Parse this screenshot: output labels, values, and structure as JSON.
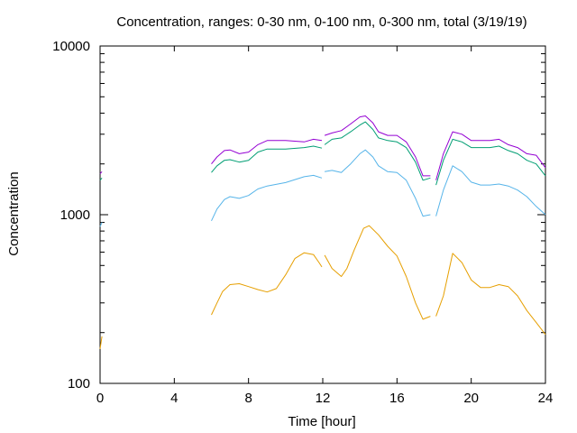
{
  "chart_data": {
    "type": "line",
    "title": "Concentration, ranges: 0-30 nm, 0-100 nm, 0-300 nm, total (3/19/19)",
    "xlabel": "Time [hour]",
    "ylabel": "Concentration",
    "xlim": [
      0,
      24
    ],
    "ylim": [
      100,
      10000
    ],
    "yscale": "log",
    "grid": false,
    "legend": "none",
    "x_ticks": [
      0,
      4,
      8,
      12,
      16,
      20,
      24
    ],
    "x_tick_labels": [
      "0",
      "4",
      "8",
      "12",
      "16",
      "20",
      "24"
    ],
    "y_ticks": [
      100,
      1000,
      10000
    ],
    "y_tick_labels": [
      "100",
      "1000",
      "10000"
    ],
    "series": [
      {
        "color": "#e69f00",
        "segments": [
          [
            [
              0.0,
              160
            ],
            [
              0.1,
              190
            ]
          ],
          [
            [
              6.0,
              255
            ],
            [
              6.3,
              300
            ],
            [
              6.6,
              350
            ],
            [
              7.0,
              385
            ],
            [
              7.5,
              390
            ],
            [
              8.0,
              375
            ],
            [
              8.5,
              360
            ],
            [
              9.0,
              348
            ],
            [
              9.5,
              365
            ],
            [
              10.0,
              440
            ],
            [
              10.5,
              550
            ],
            [
              11.0,
              595
            ],
            [
              11.5,
              580
            ],
            [
              11.8,
              520
            ],
            [
              11.95,
              490
            ]
          ],
          [
            [
              12.1,
              575
            ],
            [
              12.5,
              480
            ],
            [
              13.0,
              430
            ],
            [
              13.3,
              480
            ],
            [
              13.7,
              620
            ],
            [
              14.2,
              830
            ],
            [
              14.5,
              860
            ],
            [
              15.0,
              760
            ],
            [
              15.5,
              650
            ],
            [
              16.0,
              570
            ],
            [
              16.5,
              430
            ],
            [
              17.0,
              300
            ],
            [
              17.4,
              240
            ],
            [
              17.8,
              250
            ]
          ],
          [
            [
              18.1,
              250
            ],
            [
              18.5,
              330
            ],
            [
              19.0,
              590
            ],
            [
              19.5,
              520
            ],
            [
              20.0,
              410
            ],
            [
              20.5,
              370
            ],
            [
              21.0,
              370
            ],
            [
              21.5,
              385
            ],
            [
              22.0,
              375
            ],
            [
              22.5,
              330
            ],
            [
              23.0,
              270
            ],
            [
              23.5,
              230
            ],
            [
              24.0,
              195
            ]
          ]
        ]
      },
      {
        "color": "#56b4e9",
        "segments": [
          [
            [
              0.0,
              850
            ],
            [
              0.1,
              900
            ]
          ],
          [
            [
              6.0,
              920
            ],
            [
              6.3,
              1080
            ],
            [
              6.7,
              1230
            ],
            [
              7.0,
              1280
            ],
            [
              7.5,
              1250
            ],
            [
              8.0,
              1300
            ],
            [
              8.5,
              1420
            ],
            [
              9.0,
              1480
            ],
            [
              10.0,
              1550
            ],
            [
              11.0,
              1680
            ],
            [
              11.5,
              1710
            ],
            [
              11.95,
              1650
            ]
          ],
          [
            [
              12.1,
              1800
            ],
            [
              12.5,
              1830
            ],
            [
              13.0,
              1780
            ],
            [
              13.5,
              2000
            ],
            [
              14.0,
              2300
            ],
            [
              14.3,
              2420
            ],
            [
              14.7,
              2200
            ],
            [
              15.0,
              1950
            ],
            [
              15.5,
              1800
            ],
            [
              16.0,
              1780
            ],
            [
              16.5,
              1600
            ],
            [
              17.0,
              1250
            ],
            [
              17.4,
              980
            ],
            [
              17.8,
              1000
            ]
          ],
          [
            [
              18.1,
              980
            ],
            [
              18.5,
              1400
            ],
            [
              19.0,
              1950
            ],
            [
              19.5,
              1800
            ],
            [
              20.0,
              1560
            ],
            [
              20.5,
              1500
            ],
            [
              21.0,
              1500
            ],
            [
              21.5,
              1520
            ],
            [
              22.0,
              1480
            ],
            [
              22.5,
              1400
            ],
            [
              23.0,
              1280
            ],
            [
              23.5,
              1120
            ],
            [
              24.0,
              1000
            ]
          ]
        ]
      },
      {
        "color": "#009e73",
        "segments": [
          [
            [
              0.0,
              1600
            ],
            [
              0.1,
              1650
            ]
          ],
          [
            [
              6.0,
              1780
            ],
            [
              6.3,
              1950
            ],
            [
              6.7,
              2100
            ],
            [
              7.0,
              2120
            ],
            [
              7.5,
              2050
            ],
            [
              8.0,
              2100
            ],
            [
              8.5,
              2350
            ],
            [
              9.0,
              2450
            ],
            [
              10.0,
              2450
            ],
            [
              11.0,
              2500
            ],
            [
              11.5,
              2550
            ],
            [
              11.95,
              2480
            ]
          ],
          [
            [
              12.1,
              2600
            ],
            [
              12.5,
              2800
            ],
            [
              13.0,
              2850
            ],
            [
              13.5,
              3100
            ],
            [
              14.0,
              3400
            ],
            [
              14.3,
              3550
            ],
            [
              14.7,
              3200
            ],
            [
              15.0,
              2850
            ],
            [
              15.5,
              2750
            ],
            [
              16.0,
              2700
            ],
            [
              16.5,
              2500
            ],
            [
              17.0,
              2050
            ],
            [
              17.4,
              1600
            ],
            [
              17.8,
              1650
            ]
          ],
          [
            [
              18.1,
              1500
            ],
            [
              18.5,
              2100
            ],
            [
              19.0,
              2800
            ],
            [
              19.5,
              2700
            ],
            [
              20.0,
              2500
            ],
            [
              20.5,
              2500
            ],
            [
              21.0,
              2500
            ],
            [
              21.5,
              2550
            ],
            [
              22.0,
              2400
            ],
            [
              22.5,
              2300
            ],
            [
              23.0,
              2100
            ],
            [
              23.5,
              2000
            ],
            [
              24.0,
              1700
            ]
          ]
        ]
      },
      {
        "color": "#9400d3",
        "segments": [
          [
            [
              0.0,
              1750
            ],
            [
              0.1,
              1800
            ]
          ],
          [
            [
              6.0,
              2000
            ],
            [
              6.3,
              2200
            ],
            [
              6.7,
              2400
            ],
            [
              7.0,
              2420
            ],
            [
              7.5,
              2300
            ],
            [
              8.0,
              2350
            ],
            [
              8.5,
              2600
            ],
            [
              9.0,
              2750
            ],
            [
              10.0,
              2750
            ],
            [
              11.0,
              2700
            ],
            [
              11.5,
              2800
            ],
            [
              11.95,
              2750
            ]
          ],
          [
            [
              12.1,
              2950
            ],
            [
              12.5,
              3050
            ],
            [
              13.0,
              3150
            ],
            [
              13.5,
              3450
            ],
            [
              14.0,
              3800
            ],
            [
              14.3,
              3850
            ],
            [
              14.7,
              3500
            ],
            [
              15.0,
              3100
            ],
            [
              15.5,
              2950
            ],
            [
              16.0,
              2950
            ],
            [
              16.5,
              2700
            ],
            [
              17.0,
              2200
            ],
            [
              17.4,
              1700
            ],
            [
              17.8,
              1700
            ]
          ],
          [
            [
              18.1,
              1600
            ],
            [
              18.5,
              2300
            ],
            [
              19.0,
              3100
            ],
            [
              19.5,
              3000
            ],
            [
              20.0,
              2750
            ],
            [
              20.5,
              2750
            ],
            [
              21.0,
              2750
            ],
            [
              21.5,
              2800
            ],
            [
              22.0,
              2600
            ],
            [
              22.5,
              2500
            ],
            [
              23.0,
              2300
            ],
            [
              23.5,
              2250
            ],
            [
              24.0,
              1900
            ]
          ]
        ]
      }
    ]
  }
}
